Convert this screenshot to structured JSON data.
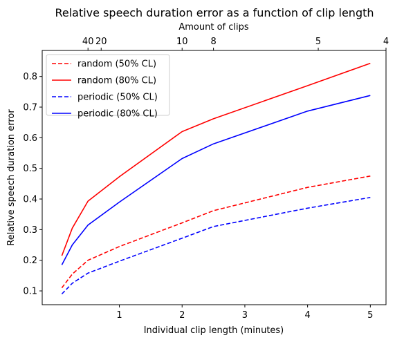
{
  "chart_data": {
    "type": "line",
    "title": "Relative speech duration error as a function of clip length",
    "xlabel": "Individual clip length (minutes)",
    "ylabel": "Relative speech duration error",
    "top_axis_label": "Amount of clips",
    "xlim": [
      -0.23,
      5.25
    ],
    "ylim": [
      0.055,
      0.885
    ],
    "x_ticks": [
      1,
      2,
      3,
      4,
      5
    ],
    "y_ticks": [
      0.1,
      0.2,
      0.3,
      0.4,
      0.5,
      0.6,
      0.7,
      0.8
    ],
    "top_ticks": [
      {
        "label": "40",
        "x": 0.5
      },
      {
        "label": "20",
        "x": 0.71
      },
      {
        "label": "10",
        "x": 2.0
      },
      {
        "label": "8",
        "x": 2.5
      },
      {
        "label": "5",
        "x": 4.17
      },
      {
        "label": "4",
        "x": 5.25
      }
    ],
    "x": [
      0.083,
      0.25,
      0.5,
      1,
      2,
      2.5,
      4,
      5
    ],
    "series": [
      {
        "name": "random (50% CL)",
        "color": "#ff0000",
        "dash": true,
        "values": [
          0.11,
          0.155,
          0.2,
          0.245,
          0.322,
          0.362,
          0.438,
          0.475
        ]
      },
      {
        "name": "random (80% CL)",
        "color": "#ff0000",
        "dash": false,
        "values": [
          0.215,
          0.305,
          0.393,
          0.473,
          0.62,
          0.662,
          0.77,
          0.843
        ]
      },
      {
        "name": "periodic (50% CL)",
        "color": "#0000ff",
        "dash": true,
        "values": [
          0.09,
          0.125,
          0.158,
          0.197,
          0.272,
          0.31,
          0.37,
          0.405
        ]
      },
      {
        "name": "periodic (80% CL)",
        "color": "#0000ff",
        "dash": false,
        "values": [
          0.185,
          0.25,
          0.315,
          0.39,
          0.532,
          0.58,
          0.687,
          0.738
        ]
      }
    ],
    "grid": false,
    "legend_position": "upper-left"
  }
}
